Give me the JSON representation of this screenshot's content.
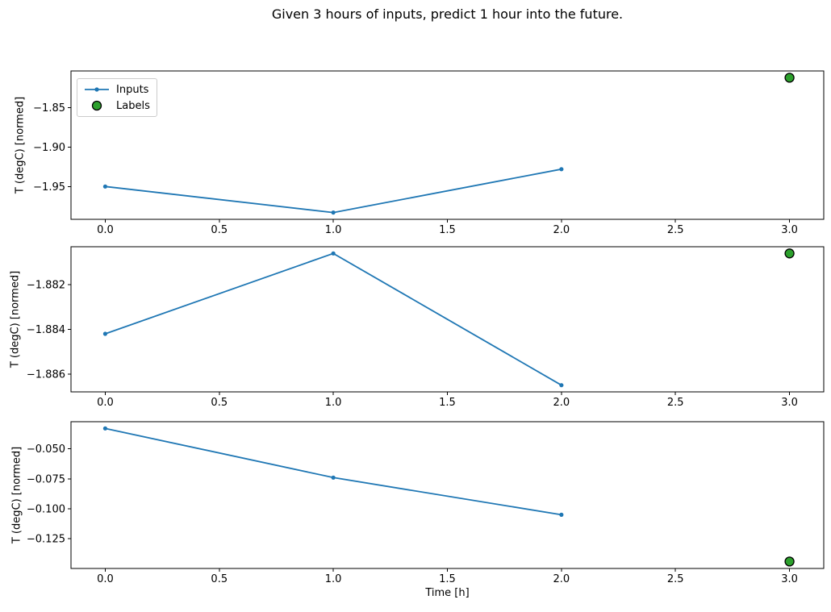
{
  "figure": {
    "title": "Given 3 hours of inputs, predict 1 hour into the future."
  },
  "legend": {
    "items": [
      {
        "label": "Inputs",
        "swatch": "line-dot"
      },
      {
        "label": "Labels",
        "swatch": "big-dot"
      }
    ]
  },
  "colors": {
    "inputs": "#1f77b4",
    "labels_fill": "#2ca02c",
    "labels_edge": "#000000",
    "axis": "#000000",
    "legend_border": "#cccccc"
  },
  "chart_data": [
    {
      "type": "line",
      "ylabel": "T (degC) [normed]",
      "xlabel": "",
      "xlim": [
        -0.15,
        3.15
      ],
      "ylim": [
        -1.9916,
        -1.8034
      ],
      "xticks": {
        "values": [
          0,
          0.5,
          1,
          1.5,
          2,
          2.5,
          3
        ],
        "labels": [
          "0.0",
          "0.5",
          "1.0",
          "1.5",
          "2.0",
          "2.5",
          "3.0"
        ]
      },
      "yticks": {
        "values": [
          -1.85,
          -1.9,
          -1.95
        ],
        "labels": [
          "−1.85",
          "−1.90",
          "−1.95"
        ]
      },
      "series": [
        {
          "name": "Inputs",
          "style": "line-dot",
          "x": [
            0,
            1,
            2
          ],
          "values": [
            -1.95,
            -1.983,
            -1.928
          ]
        },
        {
          "name": "Labels",
          "style": "big-dot",
          "x": [
            3
          ],
          "values": [
            -1.812
          ]
        }
      ]
    },
    {
      "type": "line",
      "ylabel": "T (degC) [normed]",
      "xlabel": "",
      "xlim": [
        -0.15,
        3.15
      ],
      "ylim": [
        -1.8868,
        -1.8803
      ],
      "xticks": {
        "values": [
          0,
          0.5,
          1,
          1.5,
          2,
          2.5,
          3
        ],
        "labels": [
          "0.0",
          "0.5",
          "1.0",
          "1.5",
          "2.0",
          "2.5",
          "3.0"
        ]
      },
      "yticks": {
        "values": [
          -1.882,
          -1.884,
          -1.886
        ],
        "labels": [
          "−1.882",
          "−1.884",
          "−1.886"
        ]
      },
      "series": [
        {
          "name": "Inputs",
          "style": "line-dot",
          "x": [
            0,
            1,
            2
          ],
          "values": [
            -1.8842,
            -1.8806,
            -1.8865
          ]
        },
        {
          "name": "Labels",
          "style": "big-dot",
          "x": [
            3
          ],
          "values": [
            -1.8806
          ]
        }
      ]
    },
    {
      "type": "line",
      "ylabel": "T (degC) [normed]",
      "xlabel": "Time [h]",
      "xlim": [
        -0.15,
        3.15
      ],
      "ylim": [
        -0.1498,
        -0.0274
      ],
      "xticks": {
        "values": [
          0,
          0.5,
          1,
          1.5,
          2,
          2.5,
          3
        ],
        "labels": [
          "0.0",
          "0.5",
          "1.0",
          "1.5",
          "2.0",
          "2.5",
          "3.0"
        ]
      },
      "yticks": {
        "values": [
          -0.05,
          -0.075,
          -0.1,
          -0.125
        ],
        "labels": [
          "−0.050",
          "−0.075",
          "−0.100",
          "−0.125"
        ]
      },
      "series": [
        {
          "name": "Inputs",
          "style": "line-dot",
          "x": [
            0,
            1,
            2
          ],
          "values": [
            -0.033,
            -0.074,
            -0.105
          ]
        },
        {
          "name": "Labels",
          "style": "big-dot",
          "x": [
            3
          ],
          "values": [
            -0.144
          ]
        }
      ]
    }
  ]
}
